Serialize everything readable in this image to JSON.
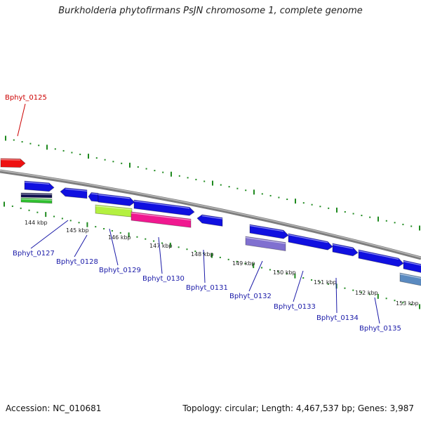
{
  "title": "Burkholderia phytofirmans PsJN chromosome 1, complete genome",
  "footer": {
    "accession": "Accession: NC_010681",
    "topology": "Topology: circular; Length: 4,467,537 bp; Genes: 3,987"
  },
  "colors": {
    "backbone": "#8a8a8a",
    "tick": "#1f8a1f",
    "gene_blue": "#1010e0",
    "gene_red": "#ee1111",
    "gene_lime": "#b4f040",
    "gene_pink": "#f01890",
    "gene_lavender": "#8070d0",
    "gene_green": "#30c030",
    "gene_navy": "#101050",
    "gene_steel": "#5a8ac0",
    "label_blue": "#1a1aa8",
    "label_red": "#cc0000"
  },
  "ticks": [
    "144 kbp",
    "145 kbp",
    "146 kbp",
    "147 kbp",
    "148 kbp",
    "149 kbp",
    "150 kbp",
    "151 kbp",
    "152 kbp",
    "153 kbp"
  ],
  "gene_labels": [
    "Bphyt_0125",
    "Bphyt_0127",
    "Bphyt_0128",
    "Bphyt_0129",
    "Bphyt_0130",
    "Bphyt_0131",
    "Bphyt_0132",
    "Bphyt_0133",
    "Bphyt_0134",
    "Bphyt_0135"
  ]
}
